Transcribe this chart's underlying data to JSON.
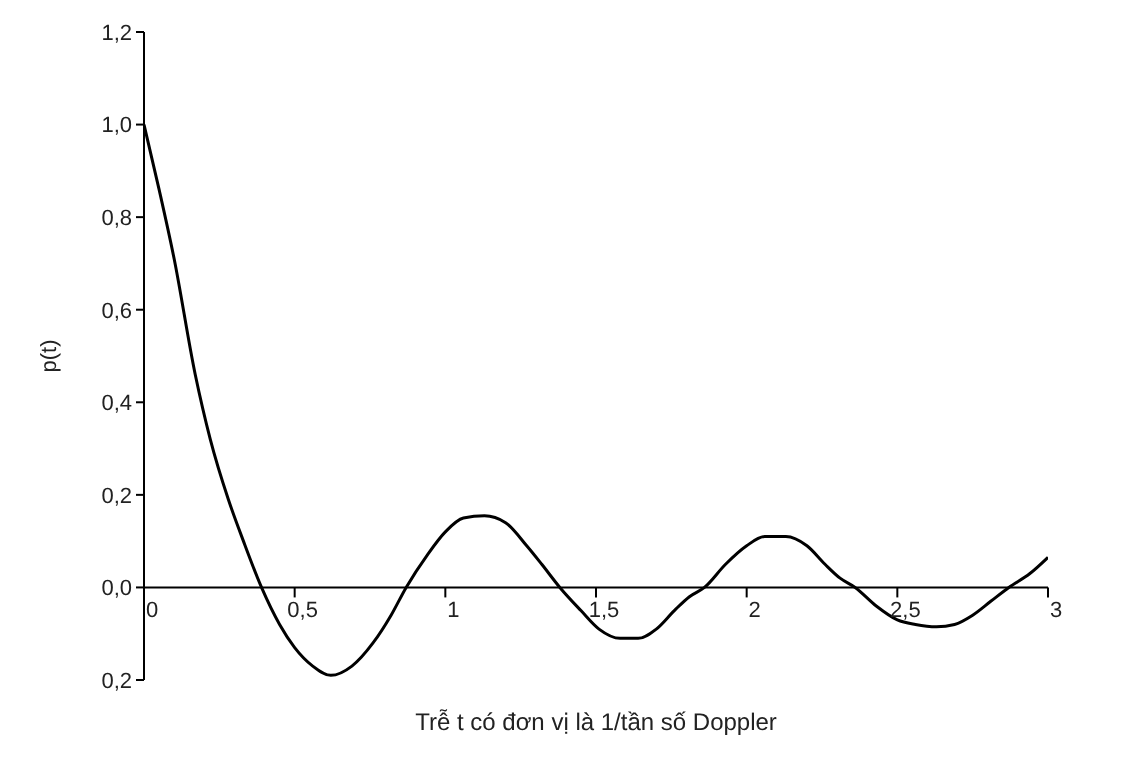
{
  "chart_data": {
    "type": "line",
    "xlabel": "Trễ t có đơn vị là 1/tần số Doppler",
    "ylabel": "p(t)",
    "x": [
      0,
      0.05,
      0.1,
      0.17,
      0.22,
      0.28,
      0.33,
      0.39,
      0.45,
      0.5,
      0.56,
      0.62,
      0.69,
      0.76,
      0.82,
      0.87,
      0.94,
      1.0,
      1.06,
      1.13,
      1.2,
      1.27,
      1.32,
      1.38,
      1.45,
      1.51,
      1.58,
      1.64,
      1.7,
      1.76,
      1.81,
      1.86,
      1.93,
      2.0,
      2.06,
      2.13,
      2.2,
      2.26,
      2.31,
      2.36,
      2.43,
      2.5,
      2.56,
      2.63,
      2.69,
      2.75,
      2.81,
      2.87,
      2.94,
      3.0
    ],
    "series": [
      {
        "color": "#000000",
        "values": [
          1.0,
          0.86,
          0.71,
          0.46,
          0.32,
          0.19,
          0.1,
          0,
          -0.08,
          -0.13,
          -0.17,
          -0.19,
          -0.17,
          -0.12,
          -0.06,
          0,
          0.07,
          0.12,
          0.15,
          0.155,
          0.14,
          0.09,
          0.05,
          0,
          -0.05,
          -0.09,
          -0.11,
          -0.11,
          -0.09,
          -0.05,
          -0.02,
          0,
          0.05,
          0.09,
          0.11,
          0.11,
          0.09,
          0.05,
          0.02,
          0,
          -0.04,
          -0.07,
          -0.08,
          -0.085,
          -0.08,
          -0.06,
          -0.03,
          0,
          0.03,
          0.065
        ]
      }
    ],
    "xlim": [
      0,
      3
    ],
    "xticks": [
      0,
      {
        "value": 0.5,
        "label": "0,5"
      },
      1,
      {
        "value": 1.5,
        "label": "1,5"
      },
      2,
      {
        "value": 2.5,
        "label": "2,5"
      },
      3
    ],
    "ylim": [
      -0.2,
      1.2
    ],
    "yticks": [
      {
        "value": -0.2,
        "label": "0,2"
      },
      {
        "value": 0,
        "label": "0,0"
      },
      {
        "value": 0.2,
        "label": "0,2"
      },
      {
        "value": 0.4,
        "label": "0,4"
      },
      {
        "value": 0.6,
        "label": "0,6"
      },
      {
        "value": 0.8,
        "label": "0,8"
      },
      {
        "value": 1.0,
        "label": "1,0"
      },
      {
        "value": 1.2,
        "label": "1,2"
      }
    ],
    "grid": false,
    "legend": false
  }
}
